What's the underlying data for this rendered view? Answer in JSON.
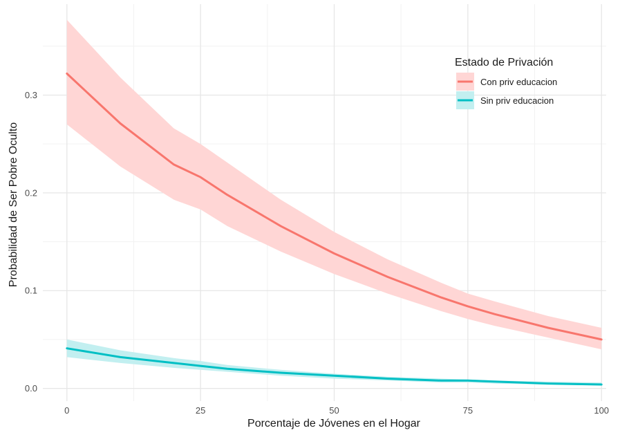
{
  "chart_data": {
    "type": "line",
    "xlabel": "Porcentaje de Jóvenes en el Hogar",
    "ylabel": "Probabilidad de Ser Pobre Oculto",
    "xlim": [
      -4.5,
      104.5
    ],
    "ylim": [
      -0.013,
      0.393
    ],
    "x_ticks": [
      0,
      25,
      50,
      75,
      100
    ],
    "x_tick_labels": [
      "0",
      "25",
      "50",
      "75",
      "100"
    ],
    "x_minor_ticks": [
      12.5,
      37.5,
      62.5,
      87.5
    ],
    "y_ticks": [
      0.0,
      0.1,
      0.2,
      0.3
    ],
    "y_tick_labels": [
      "0.0",
      "0.1",
      "0.2",
      "0.3"
    ],
    "y_minor_ticks": [
      0.05,
      0.15,
      0.25,
      0.35
    ],
    "grid": true,
    "legend": {
      "title": "Estado de Privación",
      "position": "top-right"
    },
    "x": [
      0,
      10,
      20,
      25,
      30,
      40,
      50,
      60,
      70,
      75,
      80,
      90,
      100
    ],
    "series": [
      {
        "name": "Con priv educacion",
        "color": "#F8766D",
        "fill": "#FFD6D5",
        "values": [
          0.322,
          0.271,
          0.229,
          0.216,
          0.198,
          0.166,
          0.138,
          0.114,
          0.093,
          0.084,
          0.076,
          0.062,
          0.05
        ],
        "lower": [
          0.27,
          0.227,
          0.193,
          0.183,
          0.166,
          0.14,
          0.117,
          0.097,
          0.079,
          0.071,
          0.064,
          0.052,
          0.04
        ],
        "upper": [
          0.377,
          0.318,
          0.266,
          0.25,
          0.231,
          0.193,
          0.16,
          0.132,
          0.108,
          0.097,
          0.089,
          0.074,
          0.062
        ]
      },
      {
        "name": "Sin priv educacion",
        "color": "#00BFC4",
        "fill": "#C2EFF0",
        "values": [
          0.041,
          0.032,
          0.026,
          0.023,
          0.02,
          0.016,
          0.013,
          0.01,
          0.008,
          0.008,
          0.007,
          0.005,
          0.004
        ],
        "lower": [
          0.032,
          0.026,
          0.021,
          0.019,
          0.017,
          0.013,
          0.01,
          0.008,
          0.006,
          0.006,
          0.005,
          0.004,
          0.003
        ],
        "upper": [
          0.05,
          0.039,
          0.031,
          0.028,
          0.024,
          0.019,
          0.015,
          0.012,
          0.01,
          0.009,
          0.008,
          0.007,
          0.006
        ]
      }
    ]
  }
}
